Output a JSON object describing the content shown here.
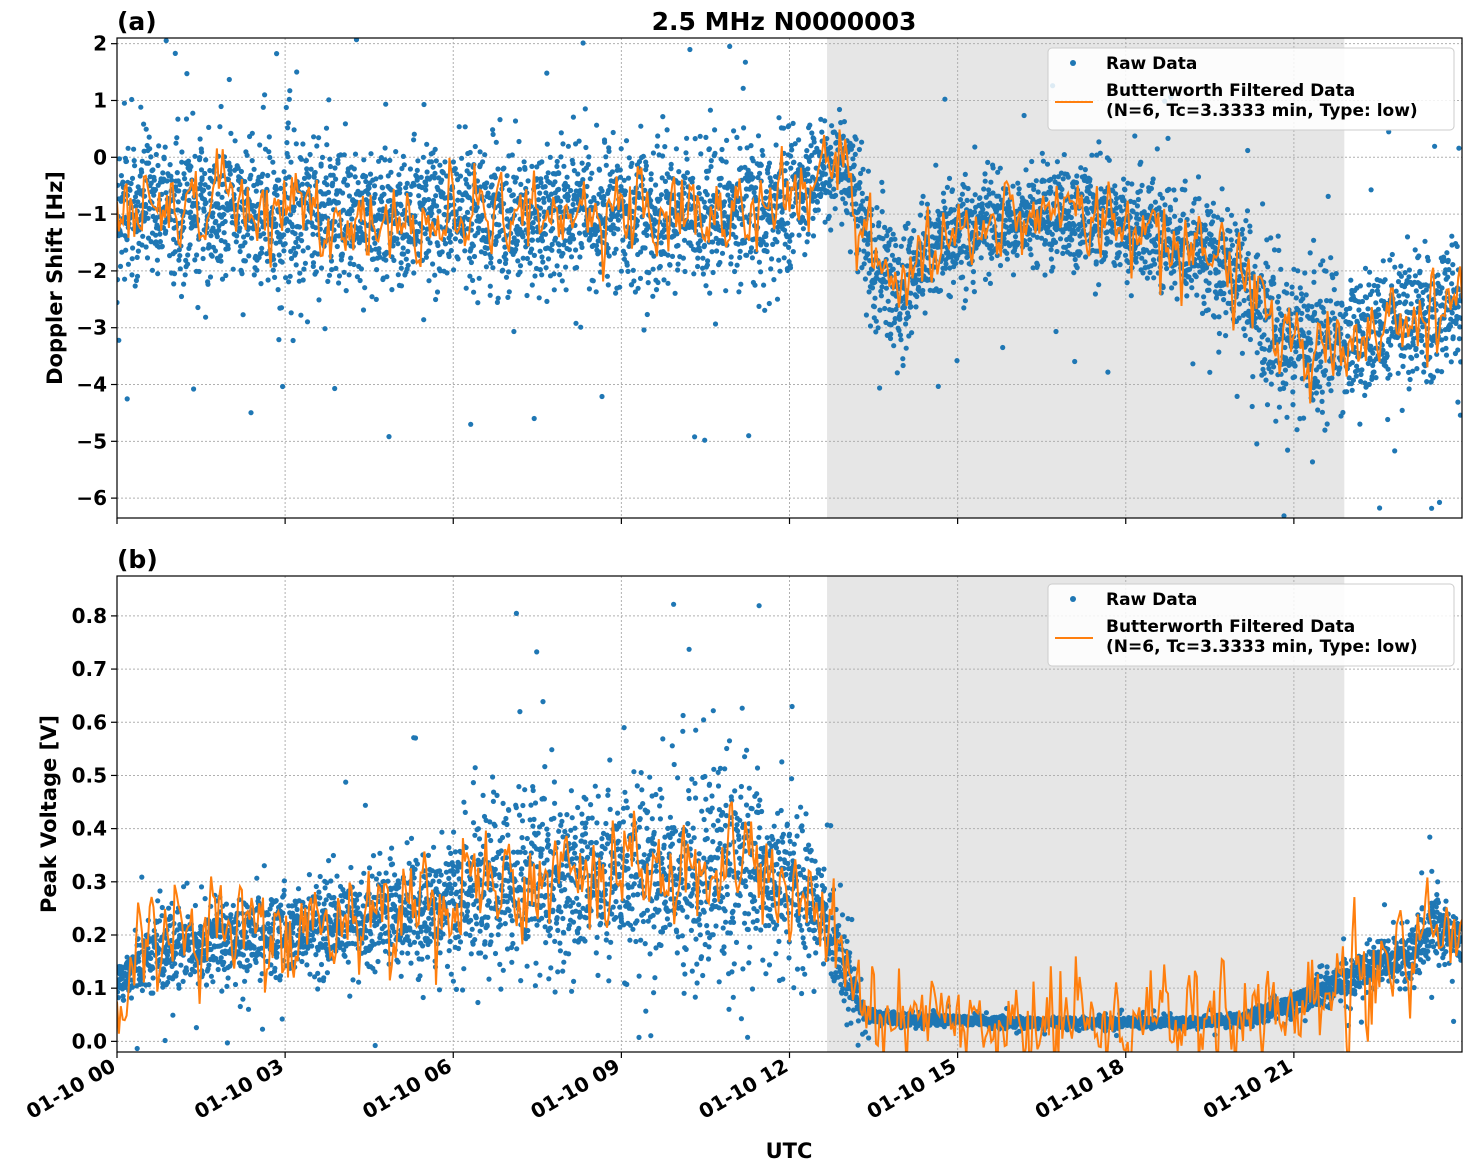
{
  "figure": {
    "title": "2.5 MHz N0000003",
    "xlabel": "UTC"
  },
  "colors": {
    "raw": "#1f77b4",
    "filtered": "#ff7f0e",
    "shade": "#e6e6e6"
  },
  "chart_data": [
    {
      "panel": "(a)",
      "type": "scatter",
      "ylabel": "Doppler Shift [Hz]",
      "ylim": [
        -6.35,
        2.1
      ],
      "yticks": [
        2,
        1,
        0,
        -1,
        -2,
        -3,
        -4,
        -5,
        -6
      ],
      "ytick_labels": [
        "2",
        "1",
        "0",
        "−1",
        "−2",
        "−3",
        "−4",
        "−5",
        "−6"
      ],
      "x_range_hours": [
        0,
        24
      ],
      "shaded_span_hours": [
        12.67,
        21.9
      ],
      "grid": true,
      "legend_position": "upper-right",
      "legend": [
        "Raw Data",
        "Butterworth Filtered Data",
        "(N=6, Tc=3.3333 min, Type: low)"
      ],
      "series": [
        {
          "name": "Raw Data",
          "style": "points",
          "x_hours": [
            0,
            1,
            2,
            3,
            4,
            5,
            6,
            7,
            8,
            9,
            10,
            11,
            12,
            12.5,
            13,
            13.5,
            14,
            14.5,
            15,
            16,
            17,
            18,
            19,
            20,
            20.5,
            21,
            22,
            23,
            24
          ],
          "center": [
            -0.9,
            -0.8,
            -0.9,
            -1.0,
            -1.0,
            -1.1,
            -1.0,
            -1.1,
            -1.0,
            -1.0,
            -1.0,
            -1.0,
            -0.8,
            -0.3,
            0.0,
            -1.8,
            -2.5,
            -1.6,
            -1.3,
            -1.1,
            -1.0,
            -1.2,
            -1.5,
            -2.0,
            -3.0,
            -3.2,
            -3.2,
            -2.8,
            -2.7
          ],
          "spread": [
            1.2,
            1.2,
            1.3,
            1.3,
            1.3,
            1.3,
            1.3,
            1.3,
            1.3,
            1.3,
            1.3,
            1.4,
            1.3,
            0.8,
            0.8,
            1.3,
            1.2,
            0.9,
            0.9,
            0.9,
            0.9,
            0.9,
            0.9,
            1.1,
            1.3,
            1.3,
            1.2,
            1.2,
            1.2
          ]
        },
        {
          "name": "Butterworth Filtered Data",
          "style": "line",
          "x_hours": [
            0,
            1,
            2,
            3,
            4,
            5,
            6,
            7,
            8,
            9,
            10,
            11,
            12,
            12.5,
            13,
            13.5,
            14,
            14.5,
            15,
            16,
            17,
            18,
            19,
            20,
            20.5,
            21,
            22,
            23,
            24
          ],
          "y": [
            -0.9,
            -0.8,
            -0.9,
            -1.0,
            -1.0,
            -1.1,
            -1.0,
            -1.1,
            -1.0,
            -1.0,
            -1.0,
            -1.0,
            -0.8,
            -0.3,
            0.0,
            -1.8,
            -2.5,
            -1.6,
            -1.3,
            -1.1,
            -1.0,
            -1.2,
            -1.5,
            -2.0,
            -3.0,
            -3.2,
            -3.2,
            -2.8,
            -2.7
          ],
          "noise": 0.35
        }
      ]
    },
    {
      "panel": "(b)",
      "type": "scatter",
      "ylabel": "Peak Voltage [V]",
      "ylim": [
        -0.02,
        0.875
      ],
      "yticks": [
        0.0,
        0.1,
        0.2,
        0.3,
        0.4,
        0.5,
        0.6,
        0.7,
        0.8
      ],
      "ytick_labels": [
        "0.0",
        "0.1",
        "0.2",
        "0.3",
        "0.4",
        "0.5",
        "0.6",
        "0.7",
        "0.8"
      ],
      "x_range_hours": [
        0,
        24
      ],
      "xticks_hours": [
        0,
        3,
        6,
        9,
        12,
        15,
        18,
        21
      ],
      "xtick_labels": [
        "01-10 00",
        "01-10 03",
        "01-10 06",
        "01-10 09",
        "01-10 12",
        "01-10 15",
        "01-10 18",
        "01-10 21"
      ],
      "shaded_span_hours": [
        12.67,
        21.9
      ],
      "grid": true,
      "legend_position": "upper-right",
      "legend": [
        "Raw Data",
        "Butterworth Filtered Data",
        "(N=6, Tc=3.3333 min, Type: low)"
      ],
      "series": [
        {
          "name": "Raw Data",
          "style": "points",
          "x_hours": [
            0,
            0.5,
            1,
            2,
            3,
            4,
            5,
            6,
            7,
            8,
            9,
            10,
            11,
            12,
            12.5,
            13,
            13.3,
            14,
            15,
            16,
            17,
            18,
            19,
            20,
            21,
            22,
            23,
            23.5,
            24
          ],
          "center": [
            0.11,
            0.16,
            0.18,
            0.2,
            0.21,
            0.23,
            0.24,
            0.27,
            0.31,
            0.31,
            0.31,
            0.32,
            0.33,
            0.3,
            0.25,
            0.15,
            0.05,
            0.04,
            0.04,
            0.035,
            0.035,
            0.035,
            0.035,
            0.04,
            0.07,
            0.12,
            0.16,
            0.22,
            0.18
          ],
          "spread": [
            0.04,
            0.06,
            0.08,
            0.08,
            0.08,
            0.09,
            0.1,
            0.13,
            0.17,
            0.17,
            0.17,
            0.19,
            0.2,
            0.15,
            0.13,
            0.08,
            0.015,
            0.012,
            0.01,
            0.01,
            0.01,
            0.01,
            0.01,
            0.012,
            0.02,
            0.04,
            0.05,
            0.07,
            0.05
          ]
        },
        {
          "name": "Butterworth Filtered Data",
          "style": "line",
          "x_hours": [
            0,
            0.5,
            1,
            2,
            3,
            4,
            5,
            6,
            7,
            8,
            9,
            10,
            11,
            12,
            12.5,
            13,
            13.3,
            14,
            15,
            16,
            17,
            18,
            19,
            20,
            21,
            22,
            23,
            23.5,
            24
          ],
          "y": [
            0.11,
            0.16,
            0.18,
            0.2,
            0.21,
            0.23,
            0.24,
            0.27,
            0.31,
            0.31,
            0.31,
            0.32,
            0.33,
            0.3,
            0.25,
            0.15,
            0.05,
            0.04,
            0.04,
            0.035,
            0.035,
            0.035,
            0.035,
            0.04,
            0.07,
            0.12,
            0.16,
            0.22,
            0.18
          ],
          "noise": 0.045
        }
      ]
    }
  ]
}
